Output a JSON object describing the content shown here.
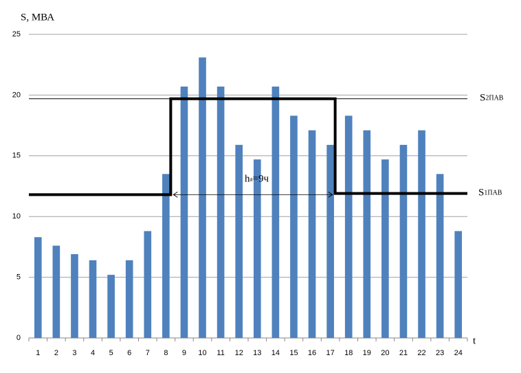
{
  "chart_data": {
    "type": "bar",
    "y_label": "S, МВА",
    "x_label": "t",
    "categories": [
      "1",
      "2",
      "3",
      "4",
      "5",
      "6",
      "7",
      "8",
      "9",
      "10",
      "11",
      "12",
      "13",
      "14",
      "15",
      "16",
      "17",
      "18",
      "19",
      "20",
      "21",
      "22",
      "23",
      "24"
    ],
    "values": [
      8.3,
      7.6,
      6.9,
      6.4,
      5.2,
      6.4,
      8.8,
      13.5,
      20.7,
      23.1,
      20.7,
      15.9,
      14.7,
      20.7,
      18.3,
      17.1,
      15.9,
      18.3,
      17.1,
      14.7,
      15.9,
      17.1,
      13.5,
      8.8
    ],
    "color": "#4f81bd",
    "ylim": [
      0,
      25
    ],
    "yticks": [
      0,
      5,
      10,
      15,
      20,
      25
    ],
    "grid": true,
    "s2_level": {
      "value": 19.7,
      "main": "S",
      "sub": "2ПАВ"
    },
    "s1_level": {
      "value": 11.9,
      "main": "S",
      "sub": "1ПАВ"
    },
    "step": {
      "low": 11.8,
      "high": 19.7,
      "from": 8,
      "to": 17
    },
    "duration_label": {
      "main": "h",
      "sub": "a",
      "rest": "=9ч"
    }
  }
}
